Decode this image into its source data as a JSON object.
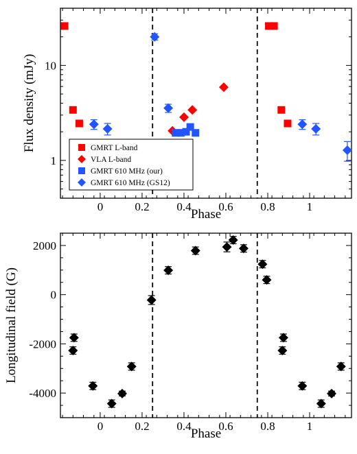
{
  "chart_data": [
    {
      "type": "scatter",
      "xlabel": "Phase",
      "ylabel": "Flux density (mJy)",
      "yscale": "log",
      "xlim": [
        -0.19,
        1.2
      ],
      "ylim": [
        0.4,
        40
      ],
      "x_ticks": [
        {
          "value": 0,
          "label": "0"
        },
        {
          "value": 0.2,
          "label": "0.2"
        },
        {
          "value": 0.4,
          "label": "0.4"
        },
        {
          "value": 0.6,
          "label": "0.6"
        },
        {
          "value": 0.8,
          "label": "0.8"
        },
        {
          "value": 1,
          "label": "1"
        }
      ],
      "y_ticks": [
        {
          "value": 1,
          "label": "1"
        },
        {
          "value": 10,
          "label": "10"
        }
      ],
      "vlines": [
        0.25,
        0.75
      ],
      "legend_position": "bottom-left",
      "series": [
        {
          "name": "GMRT L-band",
          "marker": "square",
          "color": "#ff0000",
          "points": [
            {
              "x": -0.17,
              "y": 26
            },
            {
              "x": -0.13,
              "y": 3.4
            },
            {
              "x": -0.1,
              "y": 2.45
            },
            {
              "x": 0.805,
              "y": 26
            },
            {
              "x": 0.83,
              "y": 26
            },
            {
              "x": 0.865,
              "y": 3.4
            },
            {
              "x": 0.895,
              "y": 2.45
            }
          ]
        },
        {
          "name": "VLA L-band",
          "marker": "diamond",
          "color": "#ff0000",
          "points": [
            {
              "x": 0.345,
              "y": 2.05
            },
            {
              "x": 0.4,
              "y": 2.85
            },
            {
              "x": 0.44,
              "y": 3.4
            },
            {
              "x": 0.59,
              "y": 5.9
            }
          ]
        },
        {
          "name": "GMRT 610 MHz (our)",
          "marker": "square",
          "color": "#2255ff",
          "points": [
            {
              "x": 0.36,
              "y": 1.95
            },
            {
              "x": 0.385,
              "y": 1.95
            },
            {
              "x": 0.41,
              "y": 2.0
            },
            {
              "x": 0.43,
              "y": 2.25
            },
            {
              "x": 0.455,
              "y": 1.95
            }
          ]
        },
        {
          "name": "GMRT 610 MHz (GS12)",
          "marker": "diamond",
          "color": "#2255ff",
          "points": [
            {
              "x": -0.03,
              "y": 2.4,
              "err": 0.28
            },
            {
              "x": 0.035,
              "y": 2.15,
              "err": 0.3
            },
            {
              "x": 0.185,
              "y": 1.28,
              "err": 0.3
            },
            {
              "x": 0.26,
              "y": 20,
              "err": 1.5
            },
            {
              "x": 0.325,
              "y": 3.55,
              "err": 0.35
            },
            {
              "x": 0.965,
              "y": 2.4,
              "err": 0.28
            },
            {
              "x": 1.03,
              "y": 2.15,
              "err": 0.3
            },
            {
              "x": 1.18,
              "y": 1.28,
              "err": 0.3
            }
          ]
        }
      ]
    },
    {
      "type": "scatter",
      "xlabel": "Phase",
      "ylabel": "Longitudinal field (G)",
      "xlim": [
        -0.19,
        1.2
      ],
      "ylim": [
        -5000,
        2500
      ],
      "x_ticks": [
        {
          "value": 0,
          "label": "0"
        },
        {
          "value": 0.2,
          "label": "0.2"
        },
        {
          "value": 0.4,
          "label": "0.4"
        },
        {
          "value": 0.6,
          "label": "0.6"
        },
        {
          "value": 0.8,
          "label": "0.8"
        },
        {
          "value": 1,
          "label": "1"
        }
      ],
      "y_ticks": [
        {
          "value": 2000,
          "label": "2000"
        },
        {
          "value": 0,
          "label": "0"
        },
        {
          "value": -2000,
          "label": "-2000"
        },
        {
          "value": -4000,
          "label": "-4000"
        }
      ],
      "vlines": [
        0.25,
        0.75
      ],
      "series": [
        {
          "marker": "diamond",
          "color": "#000000",
          "points": [
            {
              "x": -0.125,
              "y": -1750,
              "err": 150
            },
            {
              "x": -0.13,
              "y": -2270,
              "err": 150
            },
            {
              "x": -0.035,
              "y": -3710,
              "err": 150
            },
            {
              "x": 0.055,
              "y": -4430,
              "err": 150
            },
            {
              "x": 0.105,
              "y": -4020,
              "err": 100
            },
            {
              "x": 0.15,
              "y": -2920,
              "err": 150
            },
            {
              "x": 0.245,
              "y": -220,
              "err": 180
            },
            {
              "x": 0.325,
              "y": 990,
              "err": 150
            },
            {
              "x": 0.455,
              "y": 1790,
              "err": 150
            },
            {
              "x": 0.605,
              "y": 1940,
              "err": 200
            },
            {
              "x": 0.635,
              "y": 2220,
              "err": 150
            },
            {
              "x": 0.685,
              "y": 1880,
              "err": 150
            },
            {
              "x": 0.775,
              "y": 1240,
              "err": 150
            },
            {
              "x": 0.795,
              "y": 600,
              "err": 150
            },
            {
              "x": 0.87,
              "y": -2270,
              "err": 150
            },
            {
              "x": 0.875,
              "y": -1750,
              "err": 150
            },
            {
              "x": 0.965,
              "y": -3710,
              "err": 150
            },
            {
              "x": 1.055,
              "y": -4430,
              "err": 150
            },
            {
              "x": 1.105,
              "y": -4020,
              "err": 100
            },
            {
              "x": 1.15,
              "y": -2920,
              "err": 150
            }
          ]
        }
      ]
    }
  ]
}
